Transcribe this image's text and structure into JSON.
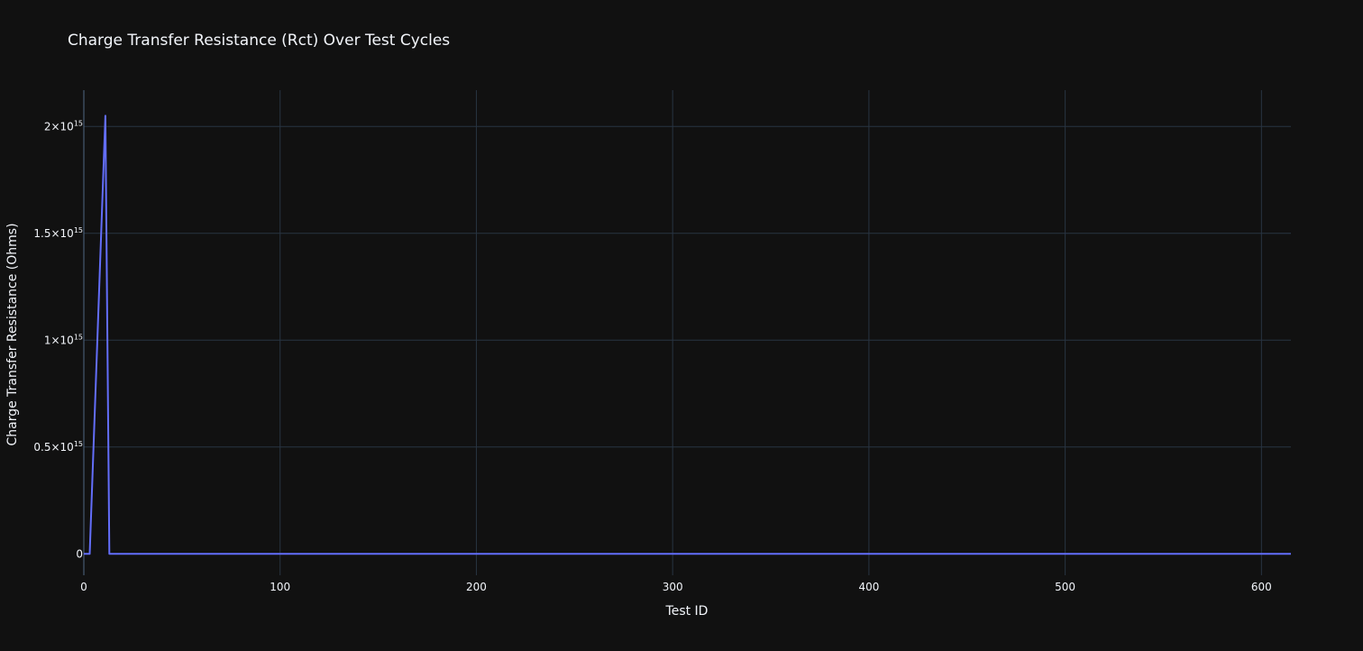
{
  "chart_data": {
    "type": "line",
    "title": "Charge Transfer Resistance (Rct) Over Test Cycles",
    "xlabel": "Test ID",
    "ylabel": "Charge Transfer Resistance (Ohms)",
    "xlim": [
      0,
      615
    ],
    "ylim": [
      -100000000000000,
      2170000000000000
    ],
    "x_ticks": [
      0,
      100,
      200,
      300,
      400,
      500,
      600
    ],
    "x_tick_labels": [
      "0",
      "100",
      "200",
      "300",
      "400",
      "500",
      "600"
    ],
    "y_ticks": [
      0,
      500000000000000,
      1000000000000000,
      1500000000000000,
      2000000000000000
    ],
    "y_tick_labels": [
      {
        "base": "0",
        "exp": ""
      },
      {
        "base": "0.5×10",
        "exp": "15"
      },
      {
        "base": "1×10",
        "exp": "15"
      },
      {
        "base": "1.5×10",
        "exp": "15"
      },
      {
        "base": "2×10",
        "exp": "15"
      }
    ],
    "series": [
      {
        "name": "Rct",
        "color": "#636efa",
        "x": [
          0,
          3,
          11,
          13,
          14,
          100,
          200,
          300,
          400,
          500,
          600,
          615
        ],
        "y": [
          0,
          0,
          2050000000000000,
          0,
          0,
          0,
          0,
          0,
          0,
          0,
          0,
          0
        ]
      }
    ]
  }
}
